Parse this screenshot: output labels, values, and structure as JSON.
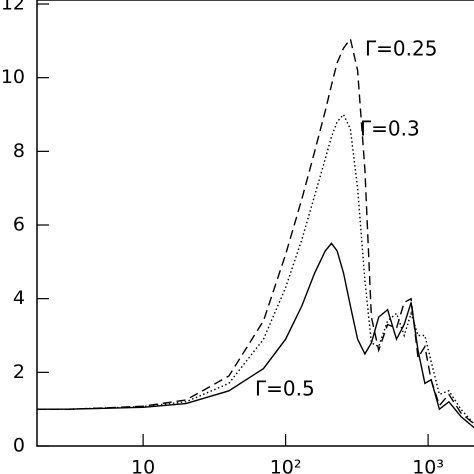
{
  "chart_data": {
    "type": "line",
    "log_x": true,
    "x": [
      1.8,
      3,
      5,
      10,
      20,
      40,
      70,
      100,
      130,
      160,
      190,
      210,
      230,
      255,
      285,
      320,
      360,
      400,
      450,
      520,
      600,
      680,
      760,
      850,
      950,
      1050,
      1200,
      1400,
      1700,
      2100
    ],
    "series": [
      {
        "name": "Γ=0.25",
        "color": "#000000",
        "dash": "9,5",
        "values": [
          1.0,
          1.0,
          1.03,
          1.08,
          1.25,
          1.9,
          3.4,
          5.2,
          6.7,
          8.0,
          9.1,
          9.8,
          10.4,
          10.8,
          11.05,
          10.2,
          7.5,
          3.5,
          2.6,
          3.3,
          3.2,
          3.9,
          4.0,
          2.4,
          2.7,
          1.8,
          1.1,
          1.4,
          0.9,
          0.6
        ]
      },
      {
        "name": "Γ=0.3",
        "color": "#000000",
        "dash": "1.5,2.5",
        "values": [
          1.0,
          1.0,
          1.03,
          1.07,
          1.2,
          1.7,
          2.9,
          4.3,
          5.6,
          6.8,
          7.8,
          8.4,
          8.8,
          9.0,
          8.6,
          7.0,
          4.5,
          2.8,
          2.7,
          3.4,
          3.6,
          3.0,
          3.6,
          3.0,
          3.0,
          2.3,
          1.4,
          1.5,
          1.0,
          0.6
        ]
      },
      {
        "name": "Γ=0.5",
        "color": "#000000",
        "dash": "none",
        "values": [
          1.0,
          1.0,
          1.02,
          1.05,
          1.15,
          1.5,
          2.1,
          2.9,
          3.8,
          4.7,
          5.3,
          5.5,
          5.3,
          4.7,
          3.8,
          2.9,
          2.5,
          2.8,
          3.5,
          3.7,
          2.9,
          3.3,
          3.9,
          2.6,
          1.7,
          1.8,
          1.0,
          1.2,
          0.8,
          0.5
        ]
      }
    ],
    "xlim": [
      1.8,
      2100
    ],
    "ylim": [
      0,
      12
    ],
    "xticks": [
      10,
      {
        "value": 100,
        "label": "10²"
      },
      {
        "value": 1000,
        "label": "10³"
      }
    ],
    "yticks": [
      0,
      2,
      4,
      6,
      8,
      10,
      12
    ]
  }
}
